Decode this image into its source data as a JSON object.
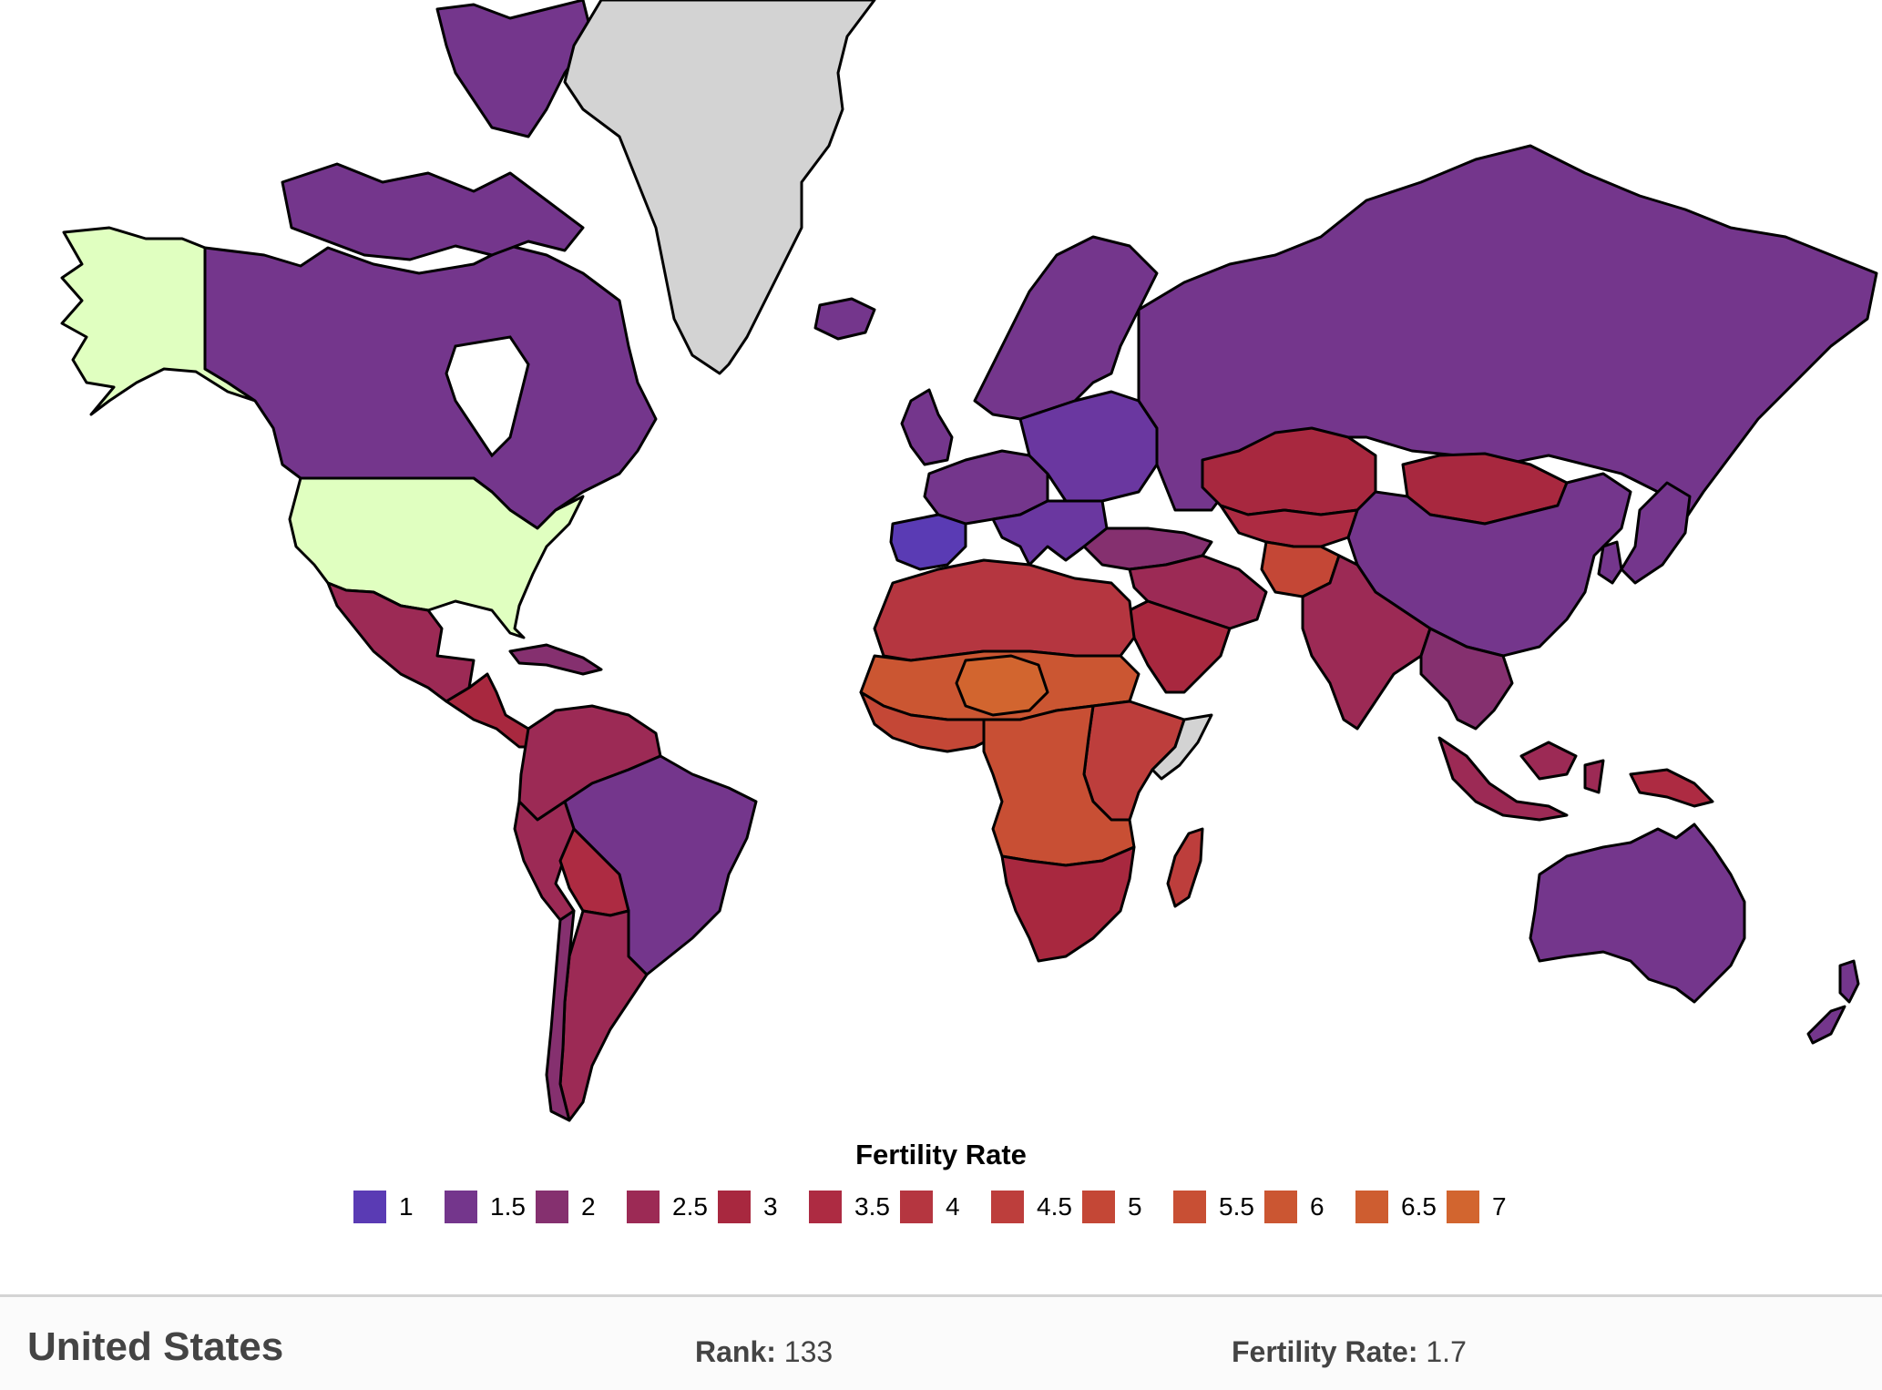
{
  "legend": {
    "title": "Fertility Rate",
    "items": [
      {
        "label": "1",
        "color": "#5a3bb4"
      },
      {
        "label": "1.5",
        "color": "#74368c"
      },
      {
        "label": "2",
        "color": "#85306f"
      },
      {
        "label": "2.5",
        "color": "#9c2a55"
      },
      {
        "label": "3",
        "color": "#a8283f"
      },
      {
        "label": "3.5",
        "color": "#ad2b42"
      },
      {
        "label": "4",
        "color": "#b53640"
      },
      {
        "label": "4.5",
        "color": "#bd3e3c"
      },
      {
        "label": "5",
        "color": "#c44736"
      },
      {
        "label": "5.5",
        "color": "#c84f34"
      },
      {
        "label": "6",
        "color": "#cb5632"
      },
      {
        "label": "6.5",
        "color": "#ce5d30"
      },
      {
        "label": "7",
        "color": "#d2652f"
      }
    ]
  },
  "map": {
    "highlight_color": "#e0ffc0",
    "nodata_color": "#d3d3d3",
    "regions": [
      {
        "id": "alaska",
        "color": "#e0ffc0"
      },
      {
        "id": "canada",
        "color": "#74368c"
      },
      {
        "id": "arctic-islands",
        "color": "#74368c"
      },
      {
        "id": "greenland",
        "color": "#d3d3d3"
      },
      {
        "id": "iceland",
        "color": "#74368c"
      },
      {
        "id": "united-states",
        "color": "#e0ffc0"
      },
      {
        "id": "mexico",
        "color": "#9c2a55"
      },
      {
        "id": "central-america",
        "color": "#a8283f"
      },
      {
        "id": "caribbean",
        "color": "#85306f"
      },
      {
        "id": "northern-south-america",
        "color": "#9c2a55"
      },
      {
        "id": "brazil",
        "color": "#74368c"
      },
      {
        "id": "andes-west",
        "color": "#9c2a55"
      },
      {
        "id": "bolivia",
        "color": "#ad2b42"
      },
      {
        "id": "southern-cone",
        "color": "#85306f"
      },
      {
        "id": "argentina",
        "color": "#9c2a55"
      },
      {
        "id": "scandinavia",
        "color": "#74368c"
      },
      {
        "id": "uk-ireland",
        "color": "#74368c"
      },
      {
        "id": "western-europe",
        "color": "#74368c"
      },
      {
        "id": "eastern-europe",
        "color": "#6a37a0"
      },
      {
        "id": "iberia",
        "color": "#5a3bb4"
      },
      {
        "id": "italy-balkans",
        "color": "#6a37a0"
      },
      {
        "id": "russia",
        "color": "#74368c"
      },
      {
        "id": "kazakhstan",
        "color": "#a8283f"
      },
      {
        "id": "mongolia",
        "color": "#a8283f"
      },
      {
        "id": "china",
        "color": "#74368c"
      },
      {
        "id": "korea-japan",
        "color": "#74368c"
      },
      {
        "id": "turkey-caucasus",
        "color": "#85306f"
      },
      {
        "id": "middle-east",
        "color": "#9c2a55"
      },
      {
        "id": "arabia",
        "color": "#a8283f"
      },
      {
        "id": "central-asia",
        "color": "#ad2b42"
      },
      {
        "id": "afghanistan",
        "color": "#c44736"
      },
      {
        "id": "south-asia",
        "color": "#9c2a55"
      },
      {
        "id": "southeast-asia",
        "color": "#85306f"
      },
      {
        "id": "north-africa",
        "color": "#b53640"
      },
      {
        "id": "sahel",
        "color": "#cb5632"
      },
      {
        "id": "niger",
        "color": "#d2652f"
      },
      {
        "id": "west-africa",
        "color": "#c44736"
      },
      {
        "id": "east-africa",
        "color": "#bd3e3c"
      },
      {
        "id": "somalia",
        "color": "#d3d3d3"
      },
      {
        "id": "central-africa",
        "color": "#c84f34"
      },
      {
        "id": "southern-africa",
        "color": "#a8283f"
      },
      {
        "id": "madagascar",
        "color": "#bd3e3c"
      },
      {
        "id": "indonesia",
        "color": "#9c2a55"
      },
      {
        "id": "papua",
        "color": "#ad2b42"
      },
      {
        "id": "australia",
        "color": "#74368c"
      },
      {
        "id": "new-zealand",
        "color": "#74368c"
      }
    ]
  },
  "info": {
    "country": "United States",
    "rank_label": "Rank:",
    "rank_value": "133",
    "rate_label": "Fertility Rate:",
    "rate_value": "1.7"
  }
}
